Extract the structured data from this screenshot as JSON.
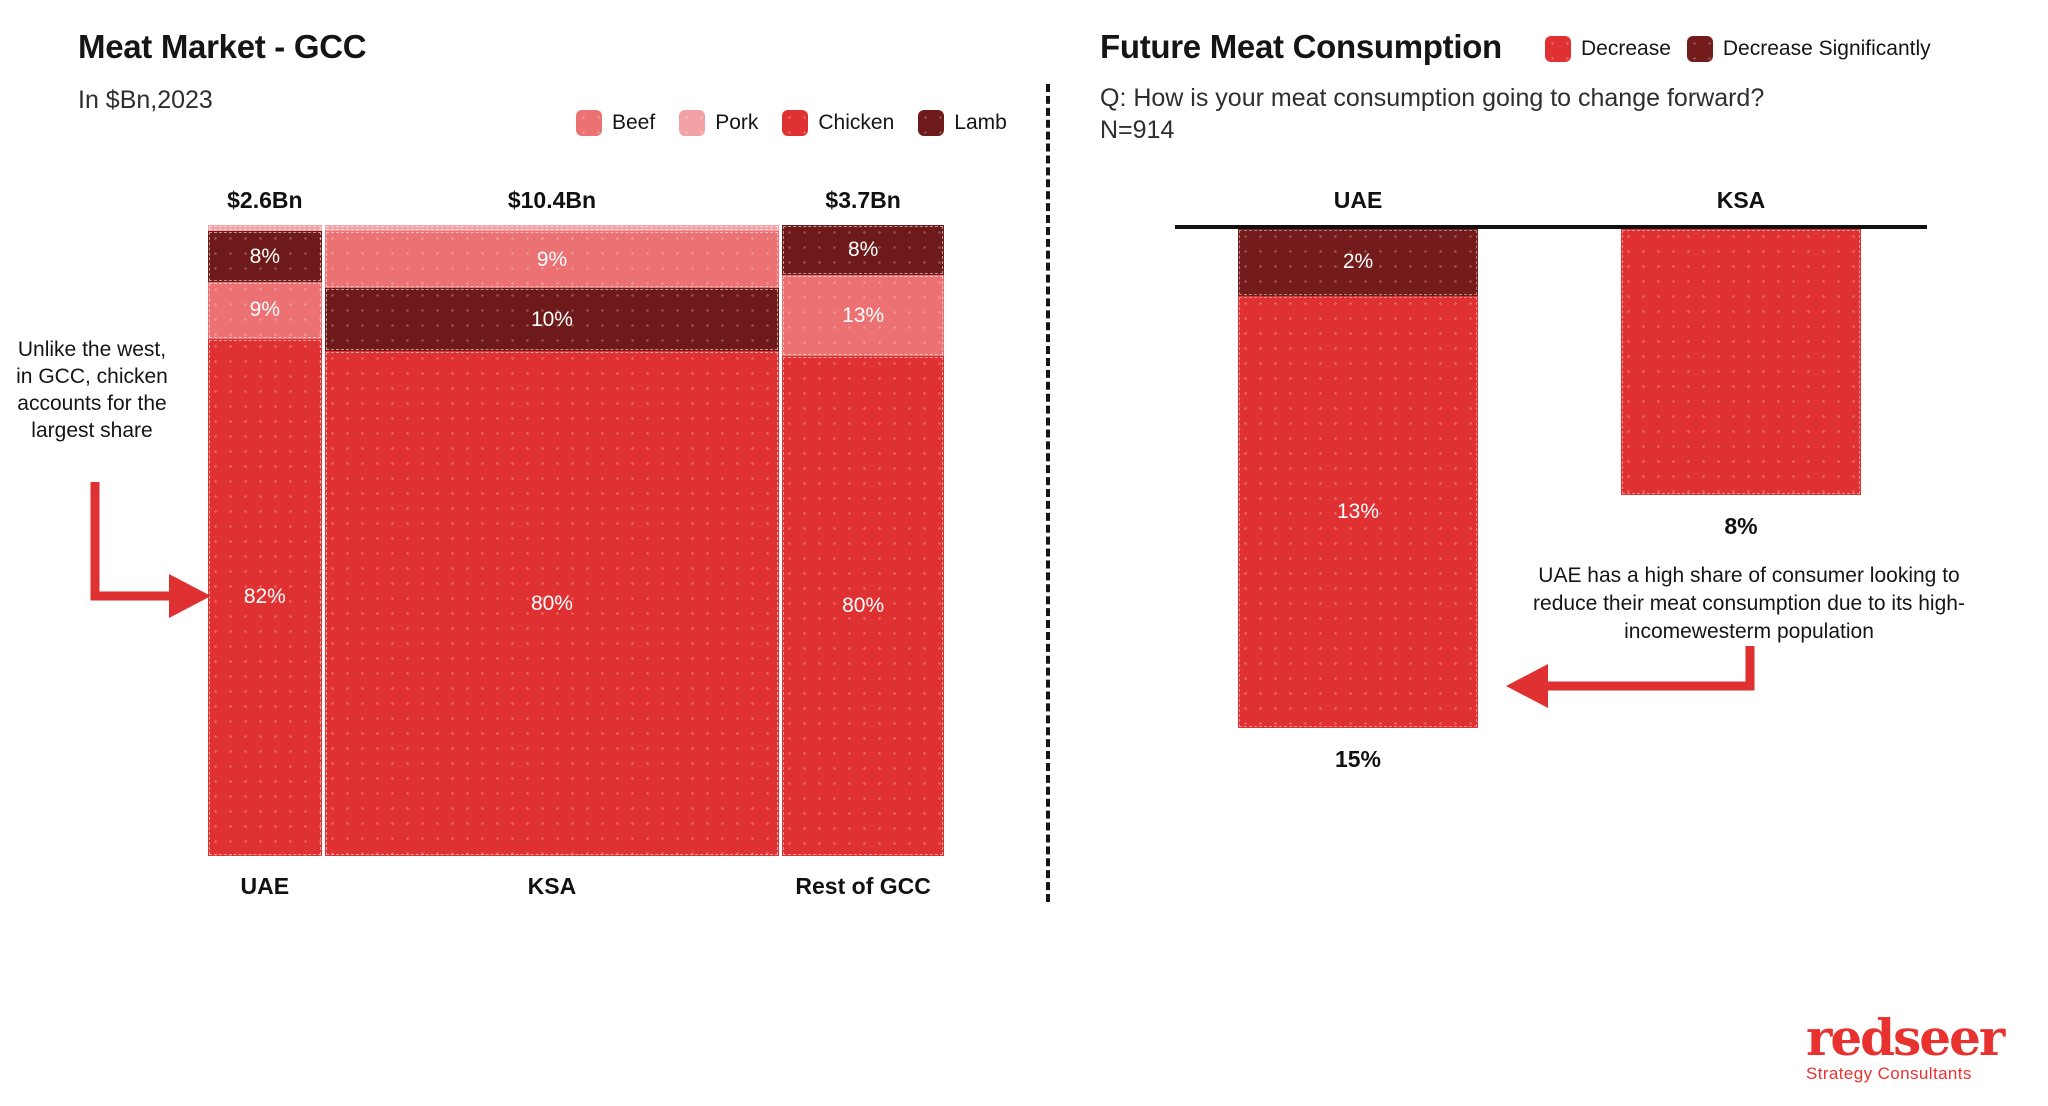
{
  "theme": {
    "accent_red": "#E03132",
    "dark_red": "#6E1A1A",
    "baseline_black": "#111111"
  },
  "left_panel": {
    "title": "Meat Market - GCC",
    "subtitle": "In $Bn,2023",
    "annotation": "Unlike the west, in GCC, chicken accounts for the largest share"
  },
  "right_panel": {
    "title": "Future Meat Consumption",
    "question": "Q: How is your meat consumption going to change forward?",
    "sample": "N=914",
    "annotation": "UAE has a high share of consumer looking to reduce their meat consumption due to its high-incomewesterm population"
  },
  "logo": {
    "name": "redseer",
    "tagline": "Strategy Consultants",
    "color": "#E8322F"
  },
  "chart_data": [
    {
      "type": "mekko",
      "title": "Meat Market - GCC",
      "unit": "$Bn, 2023",
      "legend": [
        "Beef",
        "Pork",
        "Chicken",
        "Lamb"
      ],
      "series_colors": {
        "Beef": "#EC7173",
        "Pork": "#F2A2A4",
        "Chicken": "#E03132",
        "Lamb": "#6E1A1A"
      },
      "columns": [
        {
          "label": "UAE",
          "total": "$2.6Bn",
          "value_bn": 2.6,
          "segments": [
            {
              "series": "Pork",
              "pct": 1,
              "label": ""
            },
            {
              "series": "Lamb",
              "pct": 8,
              "label": "8%"
            },
            {
              "series": "Beef",
              "pct": 9,
              "label": "9%"
            },
            {
              "series": "Chicken",
              "pct": 82,
              "label": "82%"
            }
          ]
        },
        {
          "label": "KSA",
          "total": "$10.4Bn",
          "value_bn": 10.4,
          "segments": [
            {
              "series": "Pork",
              "pct": 1,
              "label": ""
            },
            {
              "series": "Beef",
              "pct": 9,
              "label": "9%"
            },
            {
              "series": "Lamb",
              "pct": 10,
              "label": "10%"
            },
            {
              "series": "Chicken",
              "pct": 80,
              "label": "80%"
            }
          ]
        },
        {
          "label": "Rest of GCC",
          "total": "$3.7Bn",
          "value_bn": 3.7,
          "segments": [
            {
              "series": "Lamb",
              "pct": 8,
              "label": "8%"
            },
            {
              "series": "Beef",
              "pct": 13,
              "label": "13%"
            },
            {
              "series": "Chicken",
              "pct": 80,
              "label": "80%"
            }
          ]
        }
      ]
    },
    {
      "type": "bar",
      "title": "Future Meat Consumption",
      "orientation": "downward-from-baseline",
      "legend": [
        {
          "label": "Decrease",
          "color": "#E03132"
        },
        {
          "label": "Decrease Significantly",
          "color": "#741C1C"
        }
      ],
      "series_colors": {
        "Decrease": "#E03132",
        "Decrease Significantly": "#741C1C"
      },
      "bars": [
        {
          "label": "UAE",
          "total_label": "15%",
          "segments": [
            {
              "series": "Decrease Significantly",
              "pct": 2,
              "label": "2%"
            },
            {
              "series": "Decrease",
              "pct": 13,
              "label": "13%"
            }
          ]
        },
        {
          "label": "KSA",
          "total_label": "8%",
          "segments": [
            {
              "series": "Decrease",
              "pct": 8,
              "label": ""
            }
          ]
        }
      ]
    }
  ]
}
